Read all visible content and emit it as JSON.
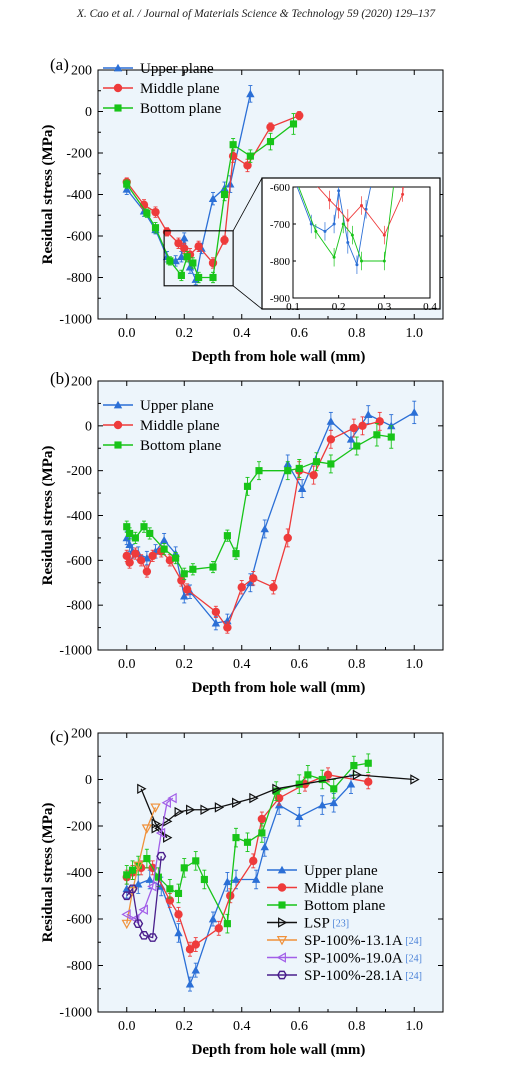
{
  "header": "X. Cao et al. / Journal of Materials Science & Technology 59 (2020) 129–137",
  "colors": {
    "upper": "#2b6fd6",
    "middle": "#ee3b3b",
    "bottom": "#18c418",
    "lsp": "#111111",
    "sp131": "#f0913a",
    "sp190": "#a25ee8",
    "sp281": "#4a1f8c",
    "plotbg": "#edf5fb",
    "ref": "#4b82d8"
  },
  "chart_data": [
    {
      "panel": "(a)",
      "type": "line",
      "xlabel": "Depth from hole wall (mm)",
      "ylabel": "Residual stress (MPa)",
      "xlim": [
        -0.1,
        1.1
      ],
      "ylim": [
        -1000,
        200
      ],
      "xticks": [
        "0.0",
        "0.2",
        "0.4",
        "0.6",
        "0.8",
        "1.0"
      ],
      "yticks": [
        "200",
        "0",
        "-200",
        "-400",
        "-600",
        "-800",
        "-1000"
      ],
      "legend": "top-left",
      "series": [
        {
          "name": "Upper plane",
          "marker": "triangle",
          "x": [
            0,
            0.06,
            0.1,
            0.14,
            0.17,
            0.19,
            0.2,
            0.22,
            0.24,
            0.26,
            0.3,
            0.34,
            0.36,
            0.43
          ],
          "y": [
            -375,
            -480,
            -570,
            -700,
            -720,
            -700,
            -610,
            -750,
            -810,
            -660,
            -420,
            -370,
            -350,
            85
          ],
          "err": [
            25,
            25,
            20,
            25,
            25,
            25,
            25,
            30,
            25,
            25,
            30,
            30,
            40,
            40
          ]
        },
        {
          "name": "Middle plane",
          "marker": "circle",
          "x": [
            0,
            0.06,
            0.1,
            0.14,
            0.18,
            0.2,
            0.22,
            0.25,
            0.3,
            0.34,
            0.37,
            0.42,
            0.5,
            0.6
          ],
          "y": [
            -340,
            -450,
            -485,
            -580,
            -635,
            -660,
            -690,
            -650,
            -730,
            -620,
            -215,
            -260,
            -75,
            -20
          ],
          "err": [
            20,
            25,
            25,
            20,
            25,
            25,
            30,
            25,
            25,
            20,
            30,
            30,
            20,
            20
          ]
        },
        {
          "name": "Bottom plane",
          "marker": "square",
          "x": [
            0,
            0.07,
            0.1,
            0.15,
            0.19,
            0.21,
            0.23,
            0.25,
            0.3,
            0.34,
            0.37,
            0.43,
            0.5,
            0.58
          ],
          "y": [
            -350,
            -490,
            -560,
            -720,
            -790,
            -700,
            -730,
            -800,
            -800,
            -400,
            -160,
            -215,
            -145,
            -60
          ],
          "err": [
            20,
            20,
            25,
            20,
            25,
            25,
            25,
            25,
            25,
            30,
            30,
            30,
            40,
            50
          ]
        }
      ],
      "inset": {
        "xlim": [
          0.1,
          0.4
        ],
        "ylim": [
          -900,
          -600
        ],
        "xticks": [
          "0.1",
          "0.2",
          "0.3",
          "0.4"
        ],
        "yticks": [
          "-600",
          "-700",
          "-800",
          "-900"
        ],
        "box_xlim": [
          0.13,
          0.37
        ],
        "box_ylim": [
          -840,
          -575
        ]
      }
    },
    {
      "panel": "(b)",
      "type": "line",
      "xlabel": "Depth from hole wall (mm)",
      "ylabel": "Residual stress (MPa)",
      "xlim": [
        -0.1,
        1.1
      ],
      "ylim": [
        -1000,
        200
      ],
      "xticks": [
        "0.0",
        "0.2",
        "0.4",
        "0.6",
        "0.8",
        "1.0"
      ],
      "yticks": [
        "200",
        "0",
        "-200",
        "-400",
        "-600",
        "-800",
        "-1000"
      ],
      "legend": "top-left",
      "series": [
        {
          "name": "Upper plane",
          "marker": "triangle",
          "x": [
            0,
            0.01,
            0.02,
            0.04,
            0.07,
            0.1,
            0.13,
            0.17,
            0.2,
            0.22,
            0.31,
            0.35,
            0.43,
            0.48,
            0.56,
            0.61,
            0.71,
            0.78,
            0.84,
            0.92,
            1.0
          ],
          "y": [
            -500,
            -530,
            -560,
            -570,
            -590,
            -560,
            -510,
            -570,
            -760,
            -740,
            -880,
            -870,
            -700,
            -460,
            -170,
            -280,
            20,
            -60,
            50,
            0,
            60
          ],
          "err": [
            30,
            30,
            30,
            30,
            30,
            30,
            30,
            30,
            30,
            30,
            30,
            30,
            40,
            40,
            40,
            40,
            40,
            40,
            40,
            50,
            50
          ]
        },
        {
          "name": "Middle plane",
          "marker": "circle",
          "x": [
            0,
            0.01,
            0.03,
            0.05,
            0.07,
            0.09,
            0.12,
            0.15,
            0.19,
            0.21,
            0.31,
            0.35,
            0.4,
            0.44,
            0.51,
            0.56,
            0.6,
            0.65,
            0.71,
            0.79,
            0.82,
            0.88
          ],
          "y": [
            -580,
            -610,
            -570,
            -600,
            -650,
            -580,
            -560,
            -600,
            -690,
            -730,
            -830,
            -900,
            -720,
            -680,
            -720,
            -500,
            -200,
            -220,
            -60,
            -10,
            0,
            20
          ],
          "err": [
            25,
            25,
            25,
            25,
            25,
            25,
            25,
            25,
            25,
            25,
            25,
            25,
            30,
            30,
            30,
            40,
            40,
            40,
            40,
            40,
            40,
            40
          ]
        },
        {
          "name": "Bottom plane",
          "marker": "square",
          "x": [
            0,
            0.01,
            0.03,
            0.06,
            0.08,
            0.13,
            0.17,
            0.2,
            0.23,
            0.3,
            0.35,
            0.38,
            0.42,
            0.46,
            0.56,
            0.6,
            0.66,
            0.71,
            0.8,
            0.87,
            0.92
          ],
          "y": [
            -450,
            -480,
            -500,
            -450,
            -480,
            -550,
            -590,
            -660,
            -640,
            -630,
            -490,
            -570,
            -270,
            -200,
            -200,
            -190,
            -160,
            -170,
            -90,
            -40,
            -50
          ],
          "err": [
            25,
            25,
            25,
            25,
            25,
            25,
            25,
            25,
            25,
            25,
            25,
            25,
            40,
            40,
            40,
            40,
            40,
            40,
            40,
            50,
            50
          ]
        }
      ]
    },
    {
      "panel": "(c)",
      "type": "line",
      "xlabel": "Depth from hole wall  (mm)",
      "ylabel": "Residual stress  (MPa)",
      "xlim": [
        -0.1,
        1.1
      ],
      "ylim": [
        -1000,
        200
      ],
      "xticks": [
        "0.0",
        "0.2",
        "0.4",
        "0.6",
        "0.8",
        "1.0"
      ],
      "yticks": [
        "200",
        "0",
        "-200",
        "-400",
        "-600",
        "-800",
        "-1000"
      ],
      "legend": "bottom-right",
      "series": [
        {
          "name": "Upper plane",
          "marker": "triangle",
          "x": [
            0,
            0.04,
            0.08,
            0.12,
            0.18,
            0.22,
            0.24,
            0.3,
            0.35,
            0.38,
            0.45,
            0.48,
            0.53,
            0.6,
            0.68,
            0.72,
            0.78
          ],
          "y": [
            -470,
            -450,
            -430,
            -460,
            -660,
            -880,
            -820,
            -600,
            -440,
            -430,
            -430,
            -290,
            -110,
            -160,
            -110,
            -100,
            -20
          ],
          "err": [
            40,
            40,
            40,
            40,
            40,
            30,
            30,
            30,
            40,
            40,
            40,
            40,
            40,
            40,
            40,
            40,
            40
          ]
        },
        {
          "name": "Middle plane",
          "marker": "circle",
          "x": [
            0,
            0.02,
            0.05,
            0.09,
            0.15,
            0.18,
            0.22,
            0.24,
            0.32,
            0.36,
            0.44,
            0.47,
            0.53,
            0.62,
            0.7,
            0.84
          ],
          "y": [
            -420,
            -400,
            -380,
            -380,
            -520,
            -580,
            -730,
            -710,
            -640,
            -500,
            -350,
            -170,
            -80,
            -20,
            20,
            -10
          ],
          "err": [
            30,
            30,
            30,
            30,
            30,
            30,
            30,
            30,
            30,
            30,
            30,
            30,
            30,
            30,
            30,
            30
          ]
        },
        {
          "name": "Bottom plane",
          "marker": "square",
          "x": [
            0,
            0.02,
            0.04,
            0.07,
            0.11,
            0.15,
            0.18,
            0.2,
            0.24,
            0.27,
            0.35,
            0.38,
            0.42,
            0.47,
            0.52,
            0.6,
            0.63,
            0.68,
            0.72,
            0.79,
            0.84
          ],
          "y": [
            -410,
            -390,
            -370,
            -340,
            -420,
            -470,
            -490,
            -380,
            -350,
            -430,
            -620,
            -250,
            -270,
            -230,
            -50,
            -20,
            20,
            0,
            -40,
            60,
            70
          ],
          "err": [
            40,
            40,
            40,
            40,
            40,
            40,
            40,
            40,
            40,
            40,
            40,
            40,
            40,
            40,
            40,
            40,
            40,
            40,
            40,
            40,
            40
          ]
        },
        {
          "name": "LSP",
          "ref": "[23]",
          "marker": "tri-right-open",
          "x": [
            0.05,
            0.1,
            0.14,
            0.1,
            0.14,
            0.18,
            0.22,
            0.27,
            0.32,
            0.38,
            0.44,
            0.52,
            0.8,
            1.0
          ],
          "y": [
            -40,
            -190,
            -250,
            -210,
            -180,
            -140,
            -130,
            -130,
            -120,
            -100,
            -80,
            -40,
            20,
            0
          ],
          "err": []
        },
        {
          "name": "SP-100%-13.1A",
          "ref": "[24]",
          "marker": "tri-down-open",
          "x": [
            0,
            0.02,
            0.04,
            0.07,
            0.1
          ],
          "y": [
            -620,
            -480,
            -370,
            -210,
            -120
          ],
          "err": []
        },
        {
          "name": "SP-100%-19.0A",
          "ref": "[24]",
          "marker": "tri-left-open",
          "x": [
            0,
            0.03,
            0.06,
            0.09,
            0.12,
            0.14,
            0.16
          ],
          "y": [
            -580,
            -600,
            -560,
            -460,
            -230,
            -100,
            -80
          ],
          "err": []
        },
        {
          "name": "SP-100%-28.1A",
          "ref": "[24]",
          "marker": "hex-open",
          "x": [
            0,
            0.02,
            0.04,
            0.06,
            0.09,
            0.12
          ],
          "y": [
            -500,
            -470,
            -620,
            -670,
            -680,
            -330
          ],
          "err": []
        }
      ]
    }
  ]
}
